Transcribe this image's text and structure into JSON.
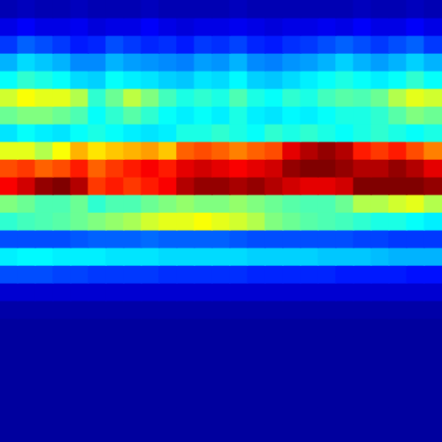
{
  "chart_data": {
    "type": "heatmap",
    "tick_labels": false,
    "grid": false,
    "zlim": [
      0,
      1
    ],
    "cells": [
      [
        0.05,
        0.06,
        0.05,
        0.05,
        0.06,
        0.05,
        0.05,
        0.05,
        0.06,
        0.05,
        0.05,
        0.05,
        0.05,
        0.06,
        0.05,
        0.05,
        0.05,
        0.05,
        0.05,
        0.05,
        0.06,
        0.05,
        0.05,
        0.06,
        0.05
      ],
      [
        0.1,
        0.12,
        0.1,
        0.1,
        0.11,
        0.09,
        0.1,
        0.1,
        0.12,
        0.1,
        0.09,
        0.1,
        0.1,
        0.11,
        0.1,
        0.09,
        0.1,
        0.1,
        0.11,
        0.1,
        0.12,
        0.1,
        0.1,
        0.12,
        0.1
      ],
      [
        0.18,
        0.22,
        0.2,
        0.18,
        0.15,
        0.16,
        0.2,
        0.18,
        0.16,
        0.17,
        0.15,
        0.18,
        0.17,
        0.19,
        0.16,
        0.15,
        0.17,
        0.18,
        0.2,
        0.22,
        0.2,
        0.18,
        0.2,
        0.22,
        0.18
      ],
      [
        0.3,
        0.34,
        0.32,
        0.3,
        0.26,
        0.26,
        0.3,
        0.28,
        0.27,
        0.26,
        0.25,
        0.28,
        0.27,
        0.3,
        0.26,
        0.25,
        0.27,
        0.28,
        0.3,
        0.33,
        0.3,
        0.28,
        0.3,
        0.33,
        0.3
      ],
      [
        0.38,
        0.42,
        0.4,
        0.38,
        0.34,
        0.33,
        0.38,
        0.36,
        0.35,
        0.33,
        0.32,
        0.35,
        0.34,
        0.37,
        0.33,
        0.32,
        0.34,
        0.36,
        0.38,
        0.4,
        0.38,
        0.36,
        0.38,
        0.42,
        0.38
      ],
      [
        0.58,
        0.62,
        0.6,
        0.6,
        0.55,
        0.42,
        0.48,
        0.56,
        0.5,
        0.44,
        0.4,
        0.42,
        0.4,
        0.45,
        0.4,
        0.38,
        0.42,
        0.4,
        0.44,
        0.46,
        0.45,
        0.48,
        0.55,
        0.6,
        0.58
      ],
      [
        0.48,
        0.5,
        0.5,
        0.48,
        0.45,
        0.38,
        0.42,
        0.46,
        0.42,
        0.38,
        0.36,
        0.38,
        0.36,
        0.4,
        0.36,
        0.35,
        0.37,
        0.36,
        0.38,
        0.4,
        0.4,
        0.42,
        0.46,
        0.5,
        0.48
      ],
      [
        0.35,
        0.38,
        0.36,
        0.35,
        0.38,
        0.4,
        0.38,
        0.36,
        0.35,
        0.36,
        0.4,
        0.4,
        0.42,
        0.4,
        0.38,
        0.42,
        0.4,
        0.42,
        0.4,
        0.38,
        0.4,
        0.42,
        0.4,
        0.38,
        0.4
      ],
      [
        0.6,
        0.6,
        0.55,
        0.62,
        0.7,
        0.65,
        0.68,
        0.7,
        0.72,
        0.68,
        0.78,
        0.8,
        0.78,
        0.75,
        0.78,
        0.8,
        0.9,
        0.95,
        0.98,
        0.95,
        0.85,
        0.82,
        0.85,
        0.8,
        0.75
      ],
      [
        0.8,
        0.82,
        0.78,
        0.8,
        0.85,
        0.78,
        0.82,
        0.85,
        0.88,
        0.85,
        0.9,
        0.92,
        0.9,
        0.88,
        0.9,
        0.92,
        0.98,
        1.0,
        1.0,
        0.98,
        0.95,
        0.95,
        0.98,
        0.95,
        0.9
      ],
      [
        0.88,
        0.92,
        0.98,
        1.0,
        0.95,
        0.82,
        0.85,
        0.82,
        0.85,
        0.88,
        0.95,
        0.98,
        0.98,
        0.96,
        0.98,
        0.95,
        0.92,
        0.9,
        0.9,
        0.92,
        1.0,
        1.0,
        1.0,
        1.0,
        0.98
      ],
      [
        0.5,
        0.48,
        0.45,
        0.45,
        0.48,
        0.42,
        0.45,
        0.45,
        0.48,
        0.5,
        0.52,
        0.5,
        0.5,
        0.52,
        0.5,
        0.48,
        0.46,
        0.45,
        0.45,
        0.48,
        0.55,
        0.55,
        0.58,
        0.6,
        0.55
      ],
      [
        0.42,
        0.44,
        0.45,
        0.46,
        0.48,
        0.5,
        0.52,
        0.54,
        0.58,
        0.6,
        0.6,
        0.62,
        0.6,
        0.58,
        0.55,
        0.5,
        0.48,
        0.46,
        0.45,
        0.44,
        0.42,
        0.4,
        0.4,
        0.38,
        0.36
      ],
      [
        0.2,
        0.2,
        0.2,
        0.2,
        0.21,
        0.22,
        0.22,
        0.22,
        0.23,
        0.22,
        0.22,
        0.22,
        0.22,
        0.21,
        0.2,
        0.2,
        0.2,
        0.2,
        0.2,
        0.2,
        0.19,
        0.19,
        0.18,
        0.18,
        0.18
      ],
      [
        0.36,
        0.37,
        0.37,
        0.36,
        0.36,
        0.36,
        0.35,
        0.35,
        0.35,
        0.34,
        0.34,
        0.34,
        0.34,
        0.34,
        0.33,
        0.33,
        0.33,
        0.33,
        0.32,
        0.32,
        0.32,
        0.31,
        0.3,
        0.3,
        0.3
      ],
      [
        0.2,
        0.2,
        0.2,
        0.19,
        0.19,
        0.18,
        0.18,
        0.18,
        0.18,
        0.17,
        0.17,
        0.17,
        0.17,
        0.17,
        0.16,
        0.16,
        0.16,
        0.16,
        0.16,
        0.15,
        0.15,
        0.15,
        0.15,
        0.14,
        0.14
      ],
      [
        0.08,
        0.08,
        0.08,
        0.08,
        0.08,
        0.08,
        0.08,
        0.08,
        0.08,
        0.08,
        0.08,
        0.08,
        0.08,
        0.08,
        0.08,
        0.08,
        0.08,
        0.08,
        0.08,
        0.08,
        0.08,
        0.08,
        0.08,
        0.08,
        0.08
      ],
      [
        0.04,
        0.04,
        0.04,
        0.04,
        0.04,
        0.04,
        0.04,
        0.04,
        0.04,
        0.04,
        0.04,
        0.04,
        0.04,
        0.04,
        0.04,
        0.04,
        0.04,
        0.04,
        0.04,
        0.04,
        0.04,
        0.04,
        0.04,
        0.04,
        0.04
      ],
      [
        0.03,
        0.03,
        0.03,
        0.03,
        0.03,
        0.03,
        0.03,
        0.03,
        0.03,
        0.03,
        0.03,
        0.03,
        0.03,
        0.03,
        0.03,
        0.03,
        0.03,
        0.03,
        0.03,
        0.03,
        0.03,
        0.03,
        0.03,
        0.03,
        0.03
      ],
      [
        0.03,
        0.03,
        0.03,
        0.03,
        0.03,
        0.03,
        0.03,
        0.03,
        0.03,
        0.03,
        0.03,
        0.03,
        0.03,
        0.03,
        0.03,
        0.03,
        0.03,
        0.03,
        0.03,
        0.03,
        0.03,
        0.03,
        0.03,
        0.03,
        0.03
      ],
      [
        0.03,
        0.03,
        0.03,
        0.03,
        0.03,
        0.03,
        0.03,
        0.03,
        0.03,
        0.03,
        0.03,
        0.03,
        0.03,
        0.03,
        0.03,
        0.03,
        0.03,
        0.03,
        0.03,
        0.03,
        0.03,
        0.03,
        0.03,
        0.03,
        0.03
      ],
      [
        0.03,
        0.03,
        0.03,
        0.03,
        0.03,
        0.03,
        0.03,
        0.03,
        0.03,
        0.03,
        0.03,
        0.03,
        0.03,
        0.03,
        0.03,
        0.03,
        0.03,
        0.03,
        0.03,
        0.03,
        0.03,
        0.03,
        0.03,
        0.03,
        0.03
      ],
      [
        0.03,
        0.03,
        0.03,
        0.03,
        0.03,
        0.03,
        0.03,
        0.03,
        0.03,
        0.03,
        0.03,
        0.03,
        0.03,
        0.03,
        0.03,
        0.03,
        0.03,
        0.03,
        0.03,
        0.03,
        0.03,
        0.03,
        0.03,
        0.03,
        0.03
      ],
      [
        0.03,
        0.03,
        0.03,
        0.03,
        0.03,
        0.03,
        0.03,
        0.03,
        0.03,
        0.03,
        0.03,
        0.03,
        0.03,
        0.03,
        0.03,
        0.03,
        0.03,
        0.03,
        0.03,
        0.03,
        0.03,
        0.03,
        0.03,
        0.03,
        0.03
      ],
      [
        0.03,
        0.03,
        0.03,
        0.03,
        0.03,
        0.03,
        0.03,
        0.03,
        0.03,
        0.03,
        0.03,
        0.03,
        0.03,
        0.03,
        0.03,
        0.03,
        0.03,
        0.03,
        0.03,
        0.03,
        0.03,
        0.03,
        0.03,
        0.03,
        0.03
      ]
    ]
  }
}
